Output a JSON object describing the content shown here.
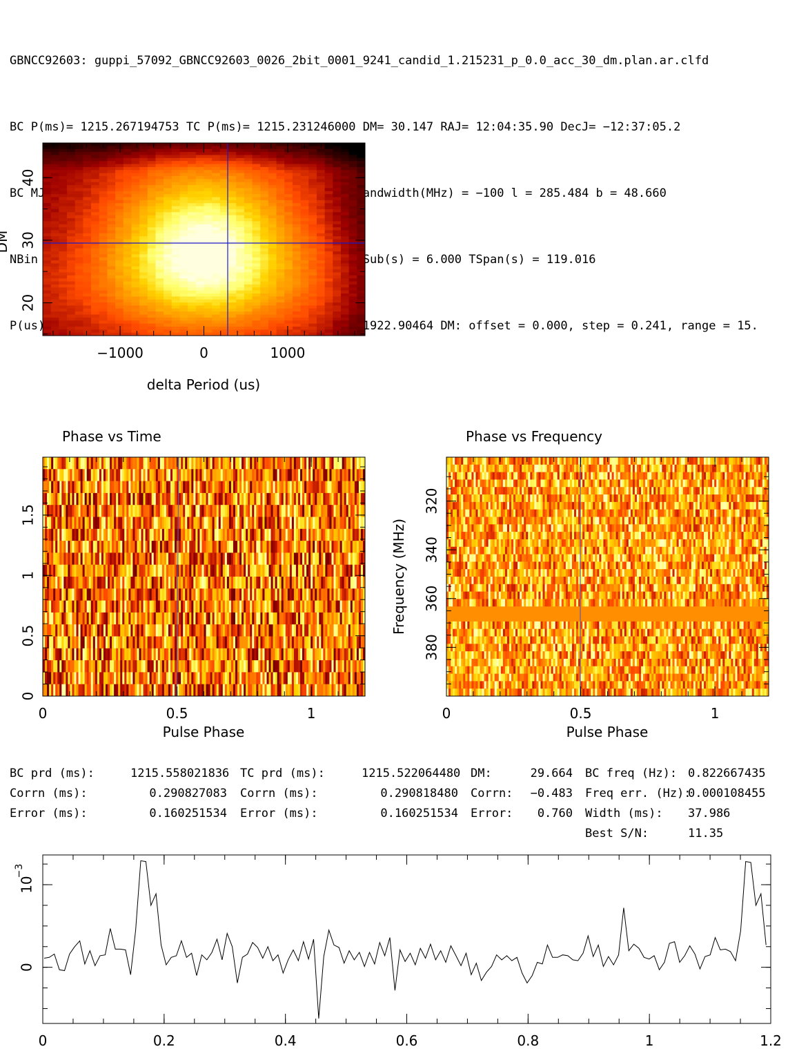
{
  "header": {
    "title": "GBNCC92603: guppi_57092_GBNCC92603_0026_2bit_0001_9241_candid_1.215231_p_0.0_acc_30_dm.plan.ar.clfd",
    "line1": "BC P(ms)= 1215.267194753 TC P(ms)= 1215.231246000 DM= 30.147 RAJ= 12:04:35.90 DecJ= −12:37:05.2",
    "line2": "BC MJD = 57092.316025 Centre freq(MHz) = 350.000 Bandwidth(MHz) = −100 l = 285.484 b = 48.660",
    "line3": "NBin = 128 NChan = 32 NSub = 20 TBin(ms) = 9.494 TSub(s) = 6.000 TSpan(s) = 119.016",
    "line4": "P(us): offset = 0.00000, step = 96.93949, range = 1922.90464 DM: offset = 0.000, step = 0.241, range = 15."
  },
  "stats": {
    "col1": [
      {
        "label": "BC prd (ms):",
        "value": "1215.558021836"
      },
      {
        "label": "Corrn (ms):",
        "value": "0.290827083"
      },
      {
        "label": "Error (ms):",
        "value": "0.160251534"
      }
    ],
    "col2": [
      {
        "label": "TC prd (ms):",
        "value": "1215.522064480"
      },
      {
        "label": "Corrn (ms):",
        "value": "0.290818480"
      },
      {
        "label": "Error (ms):",
        "value": "0.160251534"
      }
    ],
    "col3": [
      {
        "label": "DM:",
        "value": "29.664"
      },
      {
        "label": "Corrn:",
        "value": "−0.483"
      },
      {
        "label": "Error:",
        "value": "0.760"
      }
    ],
    "col4": [
      {
        "label": "BC freq (Hz):",
        "value": "0.822667435"
      },
      {
        "label": "Freq err. (Hz):",
        "value": "0.000108455"
      },
      {
        "label": "Width (ms):",
        "value": "37.986"
      },
      {
        "label": "Best S/N:",
        "value": "11.35"
      }
    ]
  },
  "chart_data": [
    {
      "type": "heatmap",
      "title": "",
      "xlabel": "delta Period (us)",
      "ylabel": "DM",
      "xlim": [
        -1922.9,
        1922.9
      ],
      "ylim": [
        14.75,
        45.55
      ],
      "xticks": [
        -1000,
        0,
        1000
      ],
      "yticks": [
        20,
        30,
        40
      ],
      "crosshair": {
        "x": 291,
        "y": 29.66
      },
      "peak": {
        "x": 0,
        "y": 30
      },
      "colormap": "heat (black-red-yellow-white)"
    },
    {
      "type": "heatmap",
      "title": "Phase vs Time",
      "xlabel": "Pulse Phase",
      "ylabel": "",
      "xlim": [
        0,
        1.2
      ],
      "ylim": [
        0,
        1.98
      ],
      "xticks": [
        0,
        0.5,
        1
      ],
      "yticks": [
        0,
        0.5,
        1,
        1.5
      ],
      "marker_phase": 0.5,
      "nsub": 20
    },
    {
      "type": "heatmap",
      "title": "Phase vs Frequency",
      "xlabel": "Pulse Phase",
      "ylabel": "Frequency (MHz)",
      "xlim": [
        0,
        1.2
      ],
      "ylim": [
        400,
        302
      ],
      "xticks": [
        0,
        0.5,
        1
      ],
      "yticks": [
        320,
        340,
        360,
        380
      ],
      "marker_phase": 0.5,
      "nchan": 32,
      "masked_channels": [
        366,
        368
      ]
    },
    {
      "type": "line",
      "title": "",
      "xlabel": "",
      "ylabel": "",
      "ylabel_exponent": "10",
      "ylabel_exponent_power": "−3",
      "xlim": [
        0,
        1.2
      ],
      "ylim": [
        -0.00068,
        0.00136
      ],
      "xticks": [
        "0",
        "0.2",
        "0.4",
        "0.6",
        "0.8",
        "1",
        "1.2"
      ],
      "yticks": [
        "0"
      ],
      "series": [
        {
          "values": [
            0.00011,
            0.00012,
            0.00016,
            -3e-05,
            -4e-05,
            0.00016,
            0.00025,
            0.00032,
            4e-05,
            0.0002,
            2e-05,
            0.00014,
            0.00015,
            0.00047,
            0.00022,
            0.00022,
            0.00021,
            -9e-05,
            0.00045,
            0.00129,
            0.00128,
            0.00075,
            0.00089,
            0.00027,
            3e-05,
            0.00012,
            0.00014,
            0.00032,
            0.00012,
            0.00017,
            -0.0001,
            0.00015,
            9e-05,
            0.00018,
            0.00034,
            9e-05,
            0.00041,
            0.00025,
            -0.00019,
            0.00012,
            0.00016,
            0.0003,
            0.00024,
            0.00011,
            0.00025,
            8e-05,
            0.00015,
            -7e-05,
            9e-05,
            0.00021,
            8e-05,
            0.00031,
            0.0001,
            0.00034,
            -0.00062,
            0.00013,
            0.00045,
            0.00027,
            0.00024,
            5e-05,
            0.0002,
            9e-05,
            0.00018,
            1e-05,
            0.00018,
            4e-05,
            0.0003,
            0.00014,
            0.00036,
            -0.00028,
            0.00021,
            7e-05,
            0.00017,
            3e-05,
            0.00023,
            0.00011,
            0.00028,
            9e-05,
            0.0002,
            6e-05,
            0.00026,
            0.00014,
            2e-05,
            0.00017,
            -9e-05,
            5e-05,
            -0.00016,
            -6e-05,
            1e-05,
            0.00015,
            9e-05,
            0.00014,
            8e-05,
            0.00012,
            -7e-05,
            -0.00019,
            -0.0001,
            6e-05,
            4e-05,
            0.00027,
            0.00012,
            0.00012,
            0.00015,
            0.00014,
            9e-05,
            8e-05,
            0.00017,
            0.00038,
            0.00013,
            0.00027,
            1e-05,
            0.00013,
            3e-05,
            0.00015,
            0.00072,
            0.0002,
            0.00028,
            0.00023,
            0.00012,
            0.0001,
            0.00014,
            -3e-05,
            6e-05,
            0.00029,
            0.00031,
            6e-05,
            0.00014,
            0.00026,
            0.00016,
            -2e-05,
            0.00013,
            0.00015,
            0.00036,
            0.00021,
            0.00022,
            0.00019,
            8e-05,
            0.00044,
            0.00128,
            0.00127,
            0.00075,
            0.00089,
            0.00027
          ]
        }
      ]
    }
  ]
}
